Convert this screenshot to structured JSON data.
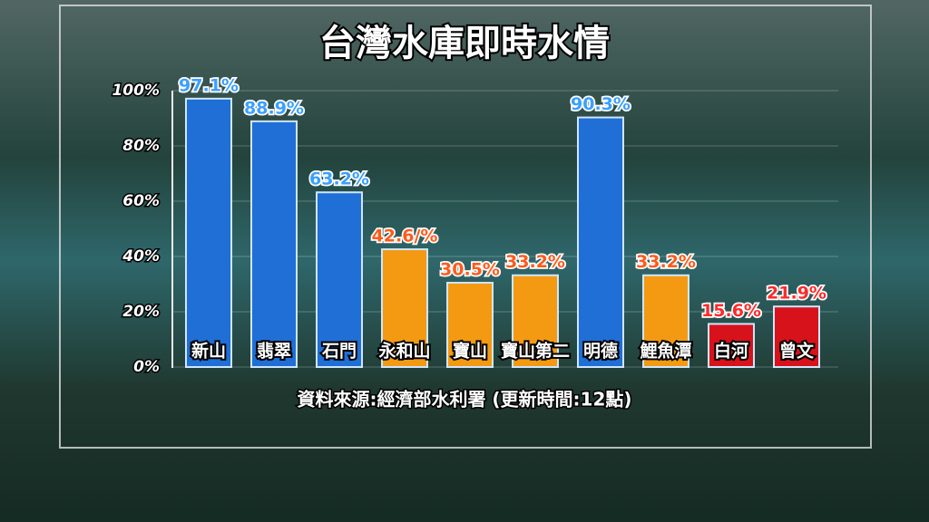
{
  "chart_data": {
    "type": "bar",
    "title": "台灣水庫即時水情",
    "source": "資料來源:經濟部水利署 (更新時間:12點)",
    "categories": [
      "新山",
      "翡翠",
      "石門",
      "永和山",
      "寶山",
      "寶山第二",
      "明德",
      "鯉魚潭",
      "白河",
      "曾文"
    ],
    "values": [
      97.1,
      88.9,
      63.2,
      42.6,
      30.5,
      33.2,
      90.3,
      33.2,
      15.6,
      21.9
    ],
    "value_labels": [
      "97.1%",
      "88.9%",
      "63.2%",
      "42.6/%",
      "30.5%",
      "33.2%",
      "90.3%",
      "33.2%",
      "15.6%",
      "21.9%"
    ],
    "colors": [
      "#1f6fd6",
      "#1f6fd6",
      "#1f6fd6",
      "#f39a12",
      "#f39a12",
      "#f39a12",
      "#1f6fd6",
      "#f39a12",
      "#d8121a",
      "#d8121a"
    ],
    "label_colors": [
      "#3aa0ff",
      "#3aa0ff",
      "#3aa0ff",
      "#ff5a1a",
      "#ff5a1a",
      "#ff5a1a",
      "#3aa0ff",
      "#ff5a1a",
      "#ff2a2a",
      "#ff2a2a"
    ],
    "ylim": [
      0,
      100
    ],
    "yticks": [
      {
        "value": 0,
        "label": "0%"
      },
      {
        "value": 20,
        "label": "20%"
      },
      {
        "value": 40,
        "label": "40%"
      },
      {
        "value": 60,
        "label": "60%"
      },
      {
        "value": 80,
        "label": "80%"
      },
      {
        "value": 100,
        "label": "100%"
      }
    ],
    "grid": true
  }
}
